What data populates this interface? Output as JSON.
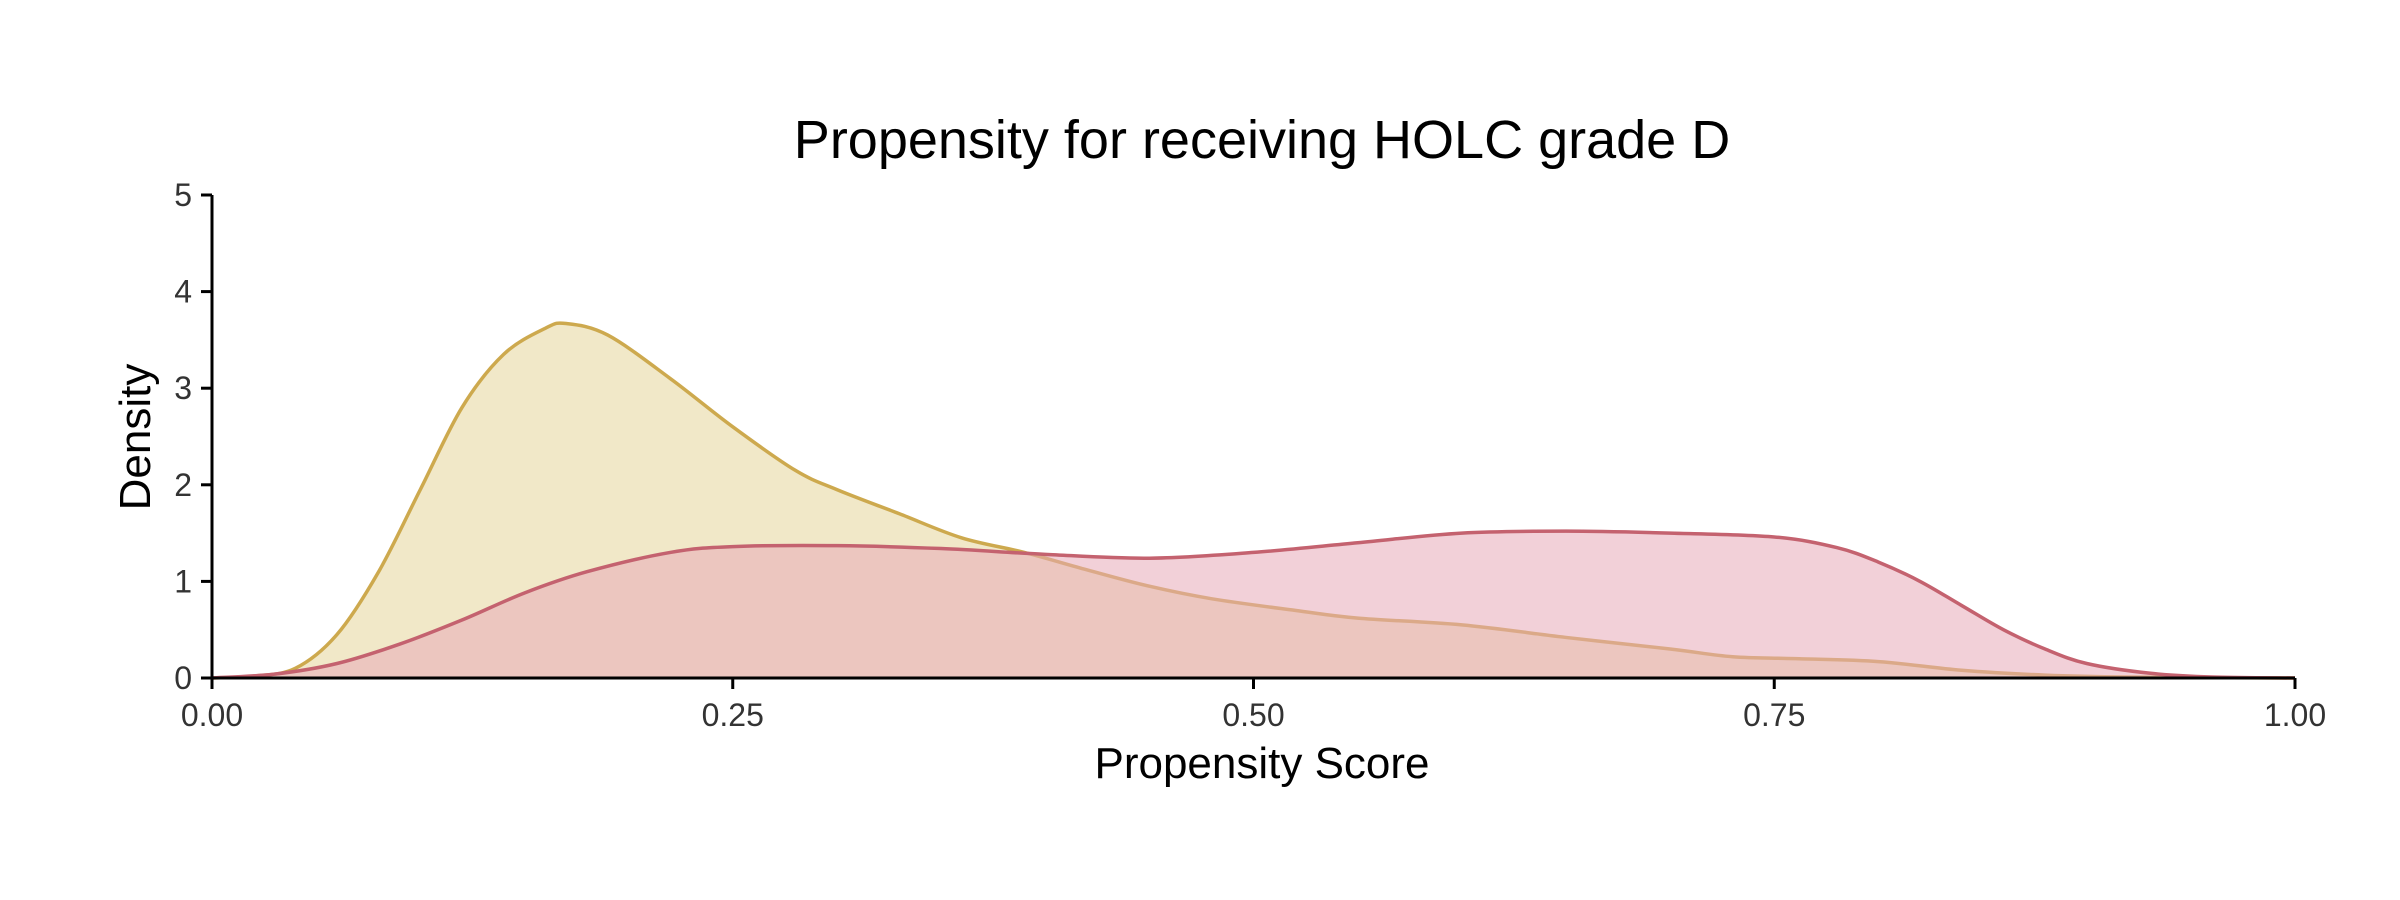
{
  "chart_data": {
    "type": "area",
    "title": "Propensity for receiving HOLC grade D",
    "xlabel": "Propensity Score",
    "ylabel": "Density",
    "xlim": [
      0,
      1
    ],
    "ylim": [
      0,
      5
    ],
    "x_ticks": [
      0,
      0.25,
      0.5,
      0.75,
      1
    ],
    "x_tick_labels": [
      "0.00",
      "0.25",
      "0.50",
      "0.75",
      "1.00"
    ],
    "y_ticks": [
      0,
      1,
      2,
      3,
      4,
      5
    ],
    "y_tick_labels": [
      "0",
      "1",
      "2",
      "3",
      "4",
      "5"
    ],
    "grid": false,
    "legend": "none",
    "series": [
      {
        "fill": "#f1e8c8",
        "stroke": "#cda94e",
        "opacity": 1.0,
        "x": [
          0.0,
          0.02,
          0.04,
          0.06,
          0.08,
          0.1,
          0.12,
          0.14,
          0.16,
          0.17,
          0.19,
          0.22,
          0.25,
          0.28,
          0.3,
          0.33,
          0.36,
          0.39,
          0.42,
          0.45,
          0.48,
          0.52,
          0.55,
          0.6,
          0.65,
          0.7,
          0.73,
          0.76,
          0.8,
          0.84,
          0.88,
          0.92,
          1.0
        ],
        "values": [
          0.0,
          0.02,
          0.1,
          0.45,
          1.1,
          1.95,
          2.8,
          3.35,
          3.62,
          3.67,
          3.55,
          3.1,
          2.6,
          2.15,
          1.95,
          1.7,
          1.45,
          1.3,
          1.12,
          0.95,
          0.82,
          0.7,
          0.62,
          0.55,
          0.42,
          0.3,
          0.22,
          0.2,
          0.17,
          0.08,
          0.03,
          0.01,
          0.0
        ]
      },
      {
        "fill": "#e7a9b8",
        "stroke": "#c4626f",
        "opacity": 0.55,
        "x": [
          0.0,
          0.03,
          0.06,
          0.09,
          0.12,
          0.15,
          0.18,
          0.22,
          0.25,
          0.3,
          0.35,
          0.4,
          0.45,
          0.5,
          0.55,
          0.6,
          0.65,
          0.7,
          0.75,
          0.78,
          0.8,
          0.82,
          0.84,
          0.86,
          0.88,
          0.9,
          0.93,
          0.96,
          1.0
        ],
        "values": [
          0.0,
          0.04,
          0.15,
          0.35,
          0.6,
          0.88,
          1.1,
          1.3,
          1.36,
          1.37,
          1.34,
          1.28,
          1.24,
          1.3,
          1.4,
          1.5,
          1.52,
          1.5,
          1.46,
          1.35,
          1.2,
          1.0,
          0.75,
          0.5,
          0.3,
          0.15,
          0.05,
          0.01,
          0.0
        ]
      }
    ]
  }
}
